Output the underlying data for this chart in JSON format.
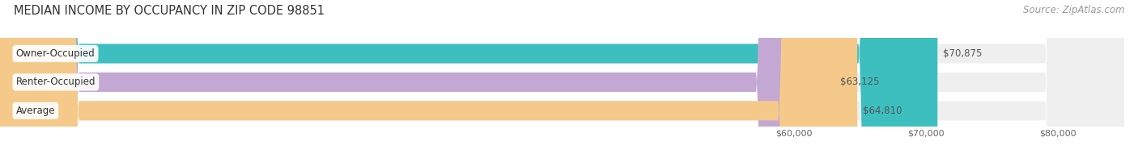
{
  "title": "MEDIAN INCOME BY OCCUPANCY IN ZIP CODE 98851",
  "source": "Source: ZipAtlas.com",
  "categories": [
    "Owner-Occupied",
    "Renter-Occupied",
    "Average"
  ],
  "values": [
    70875,
    63125,
    64810
  ],
  "value_labels": [
    "$70,875",
    "$63,125",
    "$64,810"
  ],
  "bar_colors": [
    "#3dbfbf",
    "#c4a8d4",
    "#f5c98a"
  ],
  "bar_bg_color": "#efefef",
  "xlim_min": 0,
  "xlim_max": 85000,
  "xaxis_min": 55000,
  "xticks": [
    60000,
    70000,
    80000
  ],
  "xtick_labels": [
    "$60,000",
    "$70,000",
    "$80,000"
  ],
  "bg_color": "#ffffff",
  "title_color": "#333333",
  "title_fontsize": 10.5,
  "label_fontsize": 8.5,
  "source_fontsize": 8.5,
  "value_fontsize": 8.5
}
